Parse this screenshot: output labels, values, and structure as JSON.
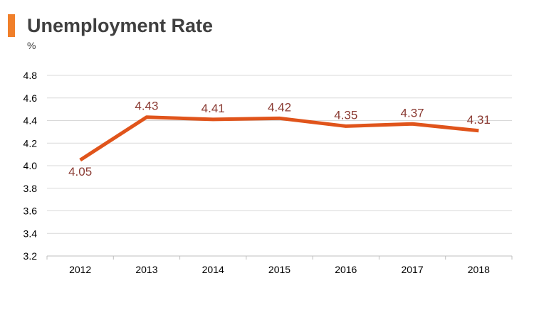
{
  "chart_data": {
    "type": "line",
    "title": "Unemployment Rate",
    "ylabel": "%",
    "xlabel": "",
    "categories": [
      "2012",
      "2013",
      "2014",
      "2015",
      "2016",
      "2017",
      "2018"
    ],
    "series": [
      {
        "name": "Unemployment Rate",
        "values": [
          4.05,
          4.43,
          4.41,
          4.42,
          4.35,
          4.37,
          4.31
        ],
        "labels": [
          "4.05",
          "4.43",
          "4.41",
          "4.42",
          "4.35",
          "4.37",
          "4.31"
        ]
      }
    ],
    "ylim": [
      3.2,
      4.8
    ],
    "yticks": [
      "3.2",
      "3.4",
      "3.6",
      "3.8",
      "4.0",
      "4.2",
      "4.4",
      "4.6",
      "4.8"
    ],
    "grid": true,
    "legend": "none"
  },
  "colors": {
    "accent": "#f07f2a",
    "line": "#e0541b",
    "data_label": "#8a3a32",
    "gridline": "#d9d9d9",
    "title": "#404040"
  }
}
